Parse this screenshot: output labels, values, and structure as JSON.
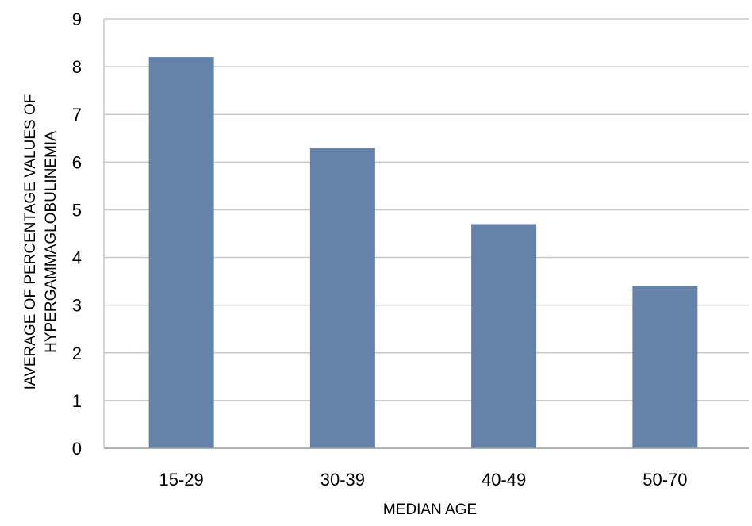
{
  "chart_data": {
    "type": "bar",
    "title": "",
    "xlabel": "MEDIAN AGE",
    "ylabel_lines": [
      "IAVERAGE OF PERCENTAGE VALUES OF",
      "HYPERGAMMAGLOBULINEMIA"
    ],
    "categories": [
      "15-29",
      "30-39",
      "40-49",
      "50-70"
    ],
    "values": [
      8.2,
      6.3,
      4.7,
      3.4
    ],
    "ylim": [
      0,
      9
    ],
    "yticks": [
      "0",
      "1",
      "2",
      "3",
      "4",
      "5",
      "6",
      "7",
      "8",
      "9"
    ],
    "grid": true,
    "legend": "none",
    "bar_color": "#6482AA",
    "grid_color": "#C8C8C8",
    "axis_color": "#999999"
  }
}
